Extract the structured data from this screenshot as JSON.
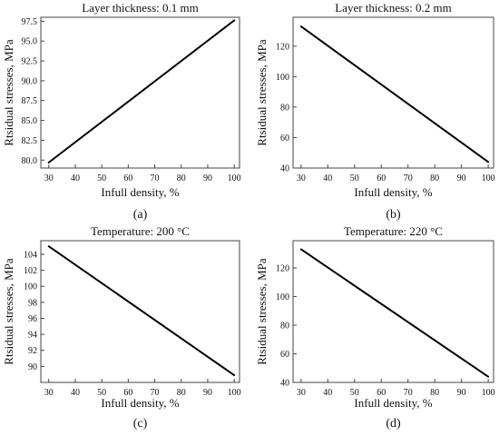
{
  "chart_data": [
    {
      "type": "line",
      "title": "Layer thickness: 0.1 mm",
      "xlabel": "Infull density, %",
      "ylabel": "Rtsidual stresses, MPa",
      "panel_label": "(a)",
      "xlim": [
        27,
        102
      ],
      "ylim": [
        79,
        98
      ],
      "xticks": [
        30,
        40,
        50,
        60,
        70,
        80,
        90,
        100
      ],
      "yticks": [
        80.0,
        82.5,
        85.0,
        87.5,
        90.0,
        92.5,
        95.0,
        97.5
      ],
      "ytick_labels": [
        "80.0",
        "82.5",
        "85.0",
        "87.5",
        "90.0",
        "92.5",
        "95.0",
        "97.5"
      ],
      "series": [
        {
          "x": [
            30,
            100
          ],
          "y": [
            79.7,
            97.6
          ]
        }
      ],
      "grid": false
    },
    {
      "type": "line",
      "title": "Layer thickness: 0.2 mm",
      "xlabel": "Infull density, %",
      "ylabel": "Rtsidual stresses, MPa",
      "panel_label": "(b)",
      "xlim": [
        27,
        102
      ],
      "ylim": [
        40,
        139
      ],
      "xticks": [
        30,
        40,
        50,
        60,
        70,
        80,
        90,
        100
      ],
      "yticks": [
        40,
        60,
        80,
        100,
        120
      ],
      "ytick_labels": [
        "40",
        "60",
        "80",
        "100",
        "120"
      ],
      "series": [
        {
          "x": [
            30,
            100
          ],
          "y": [
            133,
            44
          ]
        }
      ],
      "grid": false
    },
    {
      "type": "line",
      "title": "Temperature: 200 °C",
      "xlabel": "Infull density, %",
      "ylabel": "Rtsidual stresses, MPa",
      "panel_label": "(c)",
      "xlim": [
        27,
        102
      ],
      "ylim": [
        88,
        105.7
      ],
      "xticks": [
        30,
        40,
        50,
        60,
        70,
        80,
        90,
        100
      ],
      "yticks": [
        90,
        92,
        94,
        96,
        98,
        100,
        102,
        104
      ],
      "ytick_labels": [
        "90",
        "92",
        "94",
        "96",
        "98",
        "100",
        "102",
        "104"
      ],
      "series": [
        {
          "x": [
            30,
            100
          ],
          "y": [
            105,
            88.9
          ]
        }
      ],
      "grid": false
    },
    {
      "type": "line",
      "title": "Temperature: 220 °C",
      "xlabel": "Infull density, %",
      "ylabel": "Rtsidual stresses, MPa",
      "panel_label": "(d)",
      "xlim": [
        27,
        102
      ],
      "ylim": [
        40,
        139
      ],
      "xticks": [
        30,
        40,
        50,
        60,
        70,
        80,
        90,
        100
      ],
      "yticks": [
        40,
        60,
        80,
        100,
        120
      ],
      "ytick_labels": [
        "40",
        "60",
        "80",
        "100",
        "120"
      ],
      "series": [
        {
          "x": [
            30,
            100
          ],
          "y": [
            133,
            44
          ]
        }
      ],
      "grid": false
    }
  ]
}
